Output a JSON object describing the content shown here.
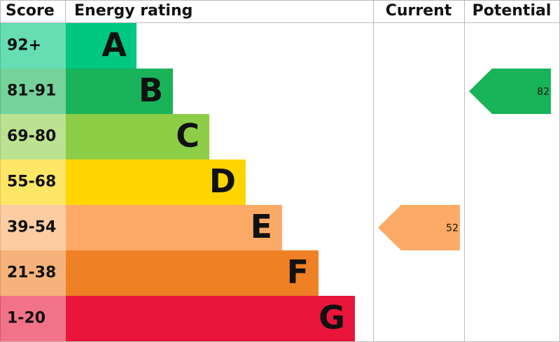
{
  "headers": {
    "score": "Score",
    "rating": "Energy rating",
    "current": "Current",
    "potential": "Potential"
  },
  "rows": [
    {
      "score": "92+",
      "letter": "A",
      "color": "#00c781"
    },
    {
      "score": "81-91",
      "letter": "B",
      "color": "#19b459"
    },
    {
      "score": "69-80",
      "letter": "C",
      "color": "#8dce46"
    },
    {
      "score": "55-68",
      "letter": "D",
      "color": "#ffd500"
    },
    {
      "score": "39-54",
      "letter": "E",
      "color": "#fcaa65"
    },
    {
      "score": "21-38",
      "letter": "F",
      "color": "#ef8023"
    },
    {
      "score": "1-20",
      "letter": "G",
      "color": "#e9153b"
    }
  ],
  "current": {
    "value": 52
  },
  "potential": {
    "value": 82
  }
}
